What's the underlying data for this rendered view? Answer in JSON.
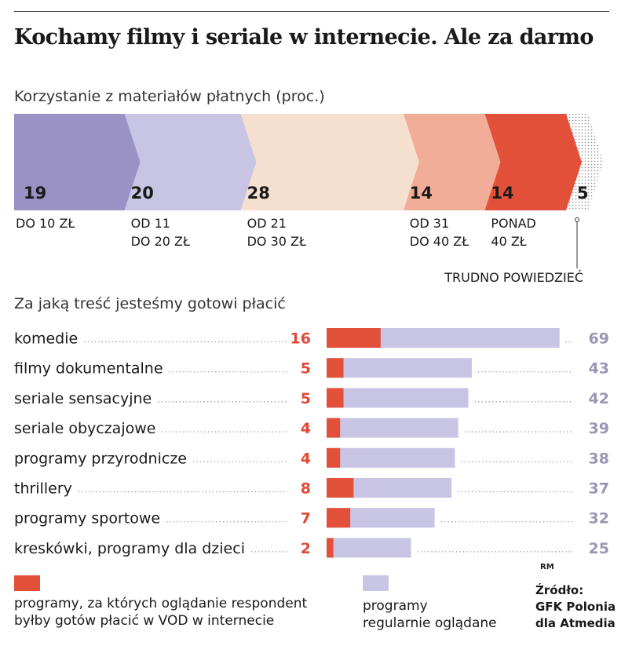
{
  "title": "Kochamy filmy i seriale w internecie. Ale za darmo",
  "chart_data": [
    {
      "type": "bar",
      "subtitle": "Korzystanie z materiałów płatnych (proc.)",
      "segments": [
        {
          "value": 19,
          "label": [
            "DO 10 ZŁ"
          ],
          "color": "#9a91c4"
        },
        {
          "value": 20,
          "label": [
            "OD 11",
            "DO 20 ZŁ"
          ],
          "color": "#c8c5e4"
        },
        {
          "value": 28,
          "label": [
            "OD 21",
            "DO 30 ZŁ"
          ],
          "color": "#f5e0cf"
        },
        {
          "value": 14,
          "label": [
            "OD 31",
            "DO 40 ZŁ"
          ],
          "color": "#f1ad97"
        },
        {
          "value": 14,
          "label": [
            "PONAD",
            "40 ZŁ"
          ],
          "color": "#e2503a"
        },
        {
          "value": 5,
          "label": [
            "TRUDNO POWIEDZIEĆ"
          ],
          "color": "#c9c9c9"
        }
      ]
    },
    {
      "type": "bar",
      "orientation": "horizontal",
      "subtitle": "Za jaką treść jesteśmy gotowi płacić",
      "categories": [
        "komedie",
        "filmy dokumentalne",
        "seriale sensacyjne",
        "seriale obyczajowe",
        "programy przyrodnicze",
        "thrillery",
        "programy sportowe",
        "kreskówki, programy dla dzieci"
      ],
      "series": [
        {
          "name": "programy, za których oglądanie respondent byłby gotów płacić w VOD w internecie",
          "values": [
            16,
            5,
            5,
            4,
            4,
            8,
            7,
            2
          ],
          "color": "#e2503a"
        },
        {
          "name": "programy regularnie oglądane",
          "values": [
            69,
            43,
            42,
            39,
            38,
            37,
            32,
            25
          ],
          "color": "#c8c5e4"
        }
      ]
    }
  ],
  "legend": {
    "paid": [
      "programy, za których oglądanie respondent",
      "byłby gotów płacić w VOD w internecie"
    ],
    "regular": [
      "programy",
      "regularnie oglądane"
    ]
  },
  "credit": "RM",
  "source": [
    "Źródło:",
    "GFK Polonia",
    "dla Atmedia"
  ]
}
